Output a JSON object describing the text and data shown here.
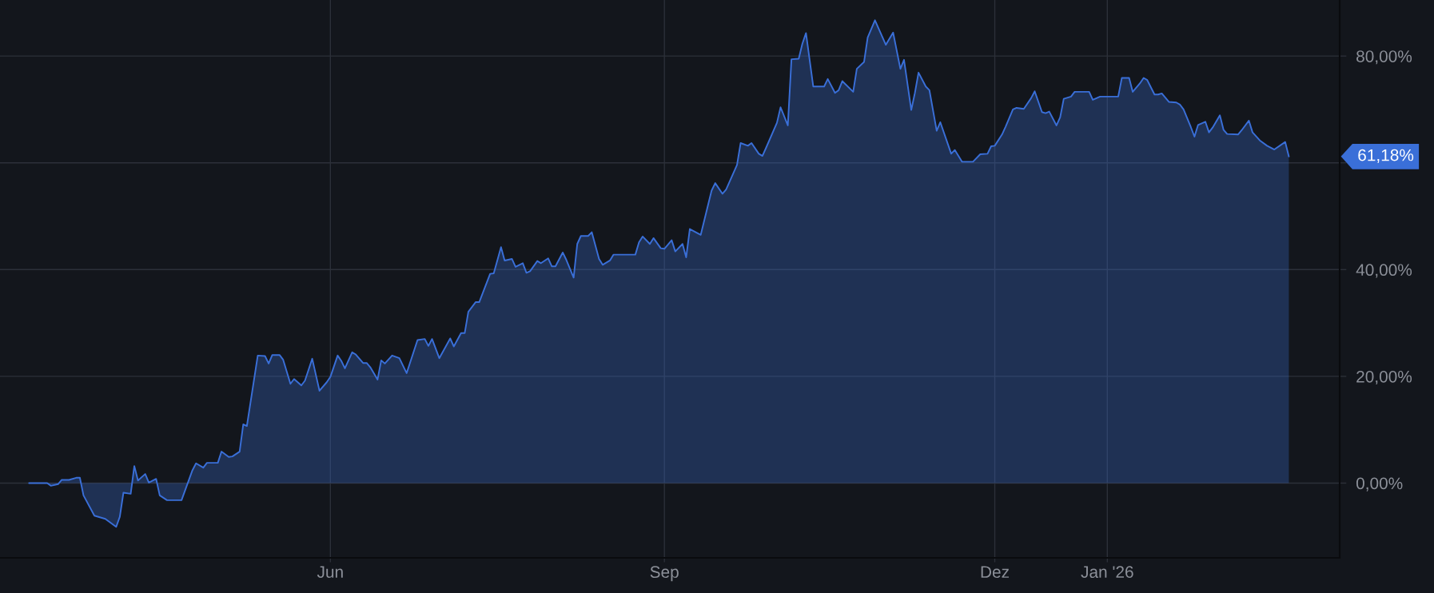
{
  "chart_data": {
    "type": "area",
    "x": [
      "2025-03-10",
      "2025-03-15",
      "2025-03-16",
      "2025-03-18",
      "2025-03-19",
      "2025-03-21",
      "2025-03-23",
      "2025-03-24",
      "2025-03-25",
      "2025-03-28",
      "2025-03-31",
      "2025-04-03",
      "2025-04-04",
      "2025-04-05",
      "2025-04-07",
      "2025-04-08",
      "2025-04-09",
      "2025-04-11",
      "2025-04-12",
      "2025-04-14",
      "2025-04-15",
      "2025-04-17",
      "2025-04-21",
      "2025-04-24",
      "2025-04-25",
      "2025-04-27",
      "2025-04-28",
      "2025-05-01",
      "2025-05-02",
      "2025-05-04",
      "2025-05-05",
      "2025-05-07",
      "2025-05-08",
      "2025-05-09",
      "2025-05-12",
      "2025-05-14",
      "2025-05-15",
      "2025-05-16",
      "2025-05-18",
      "2025-05-19",
      "2025-05-21",
      "2025-05-22",
      "2025-05-24",
      "2025-05-25",
      "2025-05-27",
      "2025-05-29",
      "2025-05-31",
      "2025-06-01",
      "2025-06-03",
      "2025-06-04",
      "2025-06-05",
      "2025-06-07",
      "2025-06-08",
      "2025-06-10",
      "2025-06-11",
      "2025-06-12",
      "2025-06-14",
      "2025-06-15",
      "2025-06-16",
      "2025-06-18",
      "2025-06-20",
      "2025-06-22",
      "2025-06-25",
      "2025-06-27",
      "2025-06-28",
      "2025-06-29",
      "2025-07-01",
      "2025-07-04",
      "2025-07-05",
      "2025-07-07",
      "2025-07-08",
      "2025-07-09",
      "2025-07-11",
      "2025-07-12",
      "2025-07-15",
      "2025-07-16",
      "2025-07-18",
      "2025-07-19",
      "2025-07-21",
      "2025-07-22",
      "2025-07-24",
      "2025-07-25",
      "2025-07-26",
      "2025-07-28",
      "2025-07-29",
      "2025-07-31",
      "2025-08-01",
      "2025-08-02",
      "2025-08-04",
      "2025-08-05",
      "2025-08-07",
      "2025-08-08",
      "2025-08-09",
      "2025-08-11",
      "2025-08-12",
      "2025-08-14",
      "2025-08-15",
      "2025-08-17",
      "2025-08-18",
      "2025-08-24",
      "2025-08-25",
      "2025-08-26",
      "2025-08-28",
      "2025-08-29",
      "2025-08-31",
      "2025-09-01",
      "2025-09-03",
      "2025-09-04",
      "2025-09-06",
      "2025-09-07",
      "2025-09-08",
      "2025-09-11",
      "2025-09-14",
      "2025-09-15",
      "2025-09-17",
      "2025-09-18",
      "2025-09-21",
      "2025-09-22",
      "2025-09-24",
      "2025-09-25",
      "2025-09-27",
      "2025-09-28",
      "2025-09-29",
      "2025-10-02",
      "2025-10-03",
      "2025-10-05",
      "2025-10-06",
      "2025-10-08",
      "2025-10-09",
      "2025-10-10",
      "2025-10-12",
      "2025-10-15",
      "2025-10-16",
      "2025-10-18",
      "2025-10-19",
      "2025-10-20",
      "2025-10-23",
      "2025-10-24",
      "2025-10-26",
      "2025-10-27",
      "2025-10-29",
      "2025-11-01",
      "2025-11-03",
      "2025-11-05",
      "2025-11-06",
      "2025-11-08",
      "2025-11-09",
      "2025-11-10",
      "2025-11-12",
      "2025-11-13",
      "2025-11-15",
      "2025-11-16",
      "2025-11-19",
      "2025-11-20",
      "2025-11-22",
      "2025-11-25",
      "2025-11-27",
      "2025-11-29",
      "2025-11-30",
      "2025-12-01",
      "2025-12-03",
      "2025-12-04",
      "2025-12-06",
      "2025-12-07",
      "2025-12-09",
      "2025-12-11",
      "2025-12-12",
      "2025-12-14",
      "2025-12-15",
      "2025-12-16",
      "2025-12-18",
      "2025-12-19",
      "2025-12-20",
      "2025-12-22",
      "2025-12-23",
      "2025-12-27",
      "2025-12-28",
      "2025-12-30",
      "2026-01-04",
      "2026-01-05",
      "2026-01-07",
      "2026-01-08",
      "2026-01-10",
      "2026-01-11",
      "2026-01-12",
      "2026-01-14",
      "2026-01-15",
      "2026-01-16",
      "2026-01-18",
      "2026-01-20",
      "2026-01-21",
      "2026-01-22",
      "2026-01-24",
      "2026-01-25",
      "2026-01-26",
      "2026-01-28",
      "2026-01-29",
      "2026-01-30",
      "2026-02-01",
      "2026-02-02",
      "2026-02-03",
      "2026-02-06",
      "2026-02-07",
      "2026-02-09",
      "2026-02-10",
      "2026-02-12",
      "2026-02-14",
      "2026-02-16",
      "2026-02-19",
      "2026-02-20"
    ],
    "series": [
      {
        "color": "#3a6fd8",
        "values": [
          0.0,
          0.0,
          -0.5,
          -0.2,
          0.6,
          0.6,
          1.0,
          1.0,
          -2.3,
          -6.1,
          -6.7,
          -8.2,
          -6.3,
          -1.8,
          -2.0,
          3.2,
          0.5,
          1.7,
          0.1,
          0.8,
          -2.3,
          -3.2,
          -3.2,
          2.4,
          3.7,
          2.9,
          3.8,
          3.8,
          5.9,
          4.9,
          5.0,
          5.9,
          11.0,
          10.7,
          23.9,
          23.8,
          22.4,
          24.0,
          24.0,
          23.1,
          18.6,
          19.5,
          18.3,
          19.2,
          23.3,
          17.3,
          18.9,
          19.9,
          23.9,
          22.9,
          21.5,
          24.5,
          24.1,
          22.5,
          22.5,
          21.7,
          19.4,
          23.0,
          22.4,
          23.9,
          23.4,
          20.6,
          26.8,
          27.0,
          25.7,
          27.0,
          23.4,
          27.1,
          25.6,
          28.1,
          28.1,
          32.1,
          33.9,
          33.9,
          39.2,
          39.3,
          44.2,
          41.7,
          42.0,
          40.5,
          41.2,
          39.4,
          39.7,
          41.6,
          41.2,
          42.1,
          40.6,
          40.6,
          43.2,
          41.8,
          38.5,
          44.8,
          46.3,
          46.3,
          47.0,
          42.0,
          40.9,
          41.7,
          42.8,
          42.8,
          45.1,
          46.2,
          44.8,
          45.9,
          44.0,
          43.9,
          45.5,
          43.4,
          44.8,
          42.3,
          47.6,
          46.5,
          54.8,
          56.2,
          54.2,
          55.0,
          59.6,
          63.7,
          63.2,
          63.7,
          61.7,
          61.3,
          62.8,
          67.5,
          70.4,
          67.0,
          79.4,
          79.5,
          82.3,
          84.3,
          74.3,
          74.3,
          75.7,
          73.1,
          73.6,
          75.3,
          73.3,
          77.6,
          78.9,
          83.5,
          86.7,
          82.1,
          84.4,
          77.6,
          79.3,
          69.9,
          73.1,
          76.9,
          74.3,
          73.6,
          66.0,
          67.6,
          61.7,
          62.4,
          60.2,
          60.2,
          61.6,
          61.7,
          63.1,
          63.2,
          65.3,
          66.8,
          70.0,
          70.3,
          70.1,
          72.1,
          73.4,
          69.5,
          69.3,
          69.6,
          67.0,
          68.5,
          72.0,
          72.4,
          73.3,
          73.3,
          71.8,
          72.4,
          72.4,
          75.9,
          75.9,
          73.3,
          74.9,
          75.9,
          75.5,
          72.8,
          72.8,
          73.0,
          71.4,
          71.3,
          70.9,
          70.0,
          66.7,
          64.9,
          67.1,
          67.7,
          65.7,
          66.6,
          68.9,
          66.2,
          65.4,
          65.3,
          66.1,
          67.9,
          65.7,
          64.2,
          63.2,
          62.5,
          63.9,
          61.18
        ]
      }
    ],
    "xlim": [
      "2025-03-02",
      "2026-03-06"
    ],
    "xticks": [
      {
        "value": "2025-06-01",
        "label": "Jun"
      },
      {
        "value": "2025-09-01",
        "label": "Sep"
      },
      {
        "value": "2025-12-01",
        "label": "Dez"
      },
      {
        "value": "2026-01-01",
        "label": "Jan '26"
      }
    ],
    "ylim": [
      -14,
      90.5
    ],
    "yticks": [
      {
        "value": 0,
        "label": "0,00%"
      },
      {
        "value": 20,
        "label": "20,00%"
      },
      {
        "value": 40,
        "label": "40,00%"
      },
      {
        "value": 60,
        "label": null
      },
      {
        "value": 80,
        "label": "80,00%"
      }
    ],
    "grid": true,
    "annotations": [
      "61,18%"
    ]
  }
}
